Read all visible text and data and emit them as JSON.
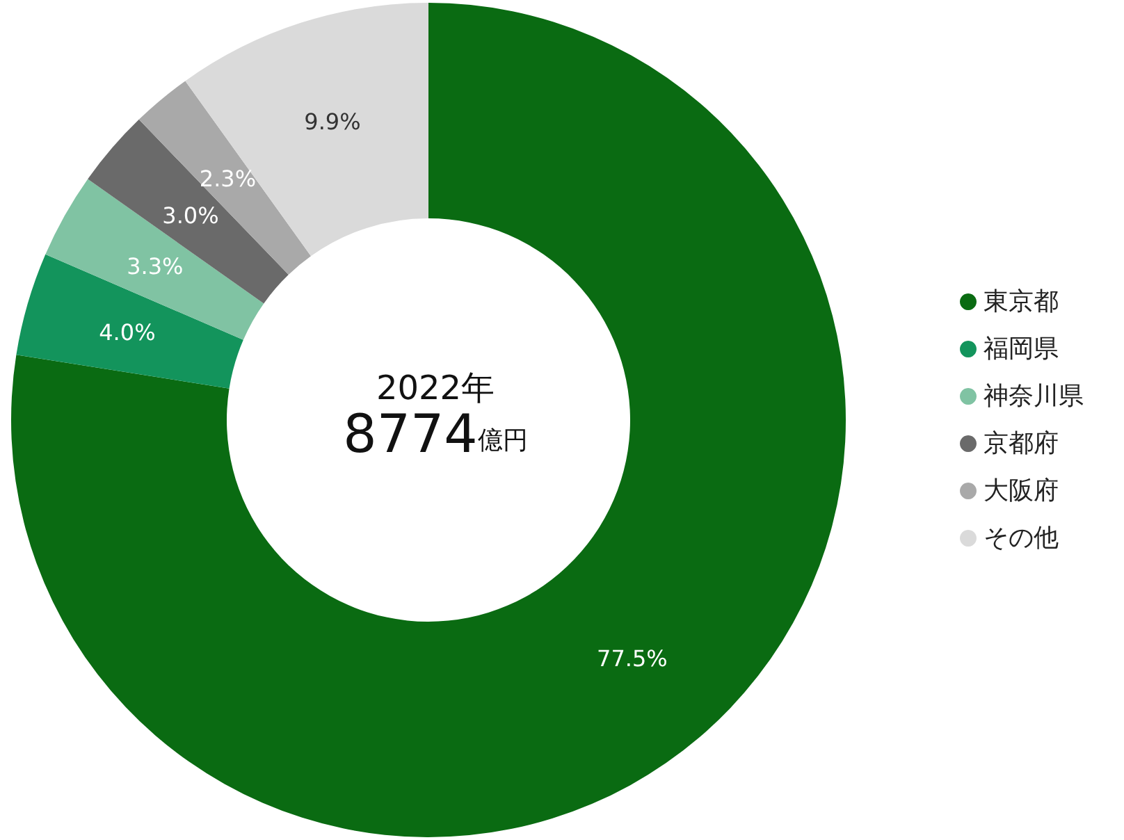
{
  "chart_data": {
    "type": "donut",
    "title": "2022年",
    "subtitle": "8774億円",
    "categories": [
      "東京都",
      "福岡県",
      "神奈川県",
      "京都府",
      "大阪府",
      "その他"
    ],
    "values": [
      77.5,
      4.0,
      3.3,
      3.0,
      2.3,
      9.9
    ],
    "colors": [
      "#0a6b12",
      "#13945c",
      "#80c3a3",
      "#6a6a6a",
      "#a9a9a9",
      "#dadada"
    ],
    "value_labels": [
      "77.5%",
      "4.0%",
      "3.3%",
      "3.0%",
      "2.3%",
      "9.9%"
    ],
    "legend": "right"
  }
}
